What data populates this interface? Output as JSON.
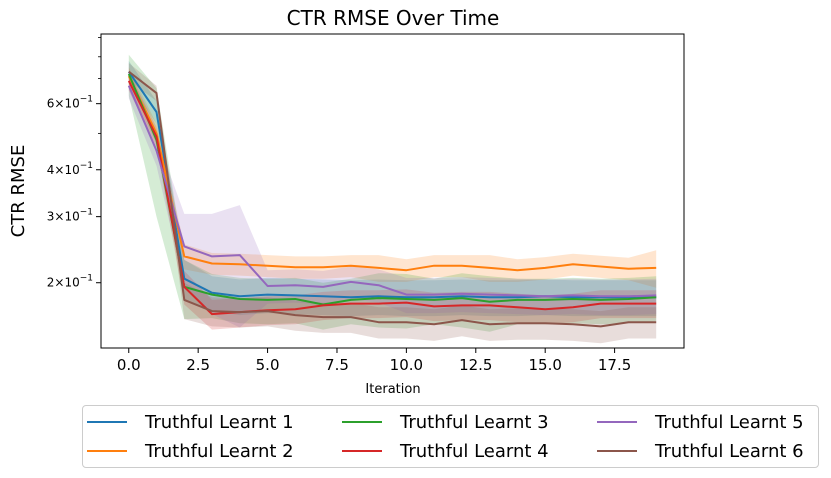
{
  "chart_data": {
    "type": "line",
    "title": "CTR RMSE Over Time",
    "xlabel": "Iteration",
    "ylabel": "CTR RMSE",
    "y_scale": "log",
    "xlim": [
      -1,
      20
    ],
    "ylim": [
      0.134,
      0.92
    ],
    "x_ticks": [
      0.0,
      2.5,
      5.0,
      7.5,
      10.0,
      12.5,
      15.0,
      17.5
    ],
    "x_tick_labels": [
      "0.0",
      "2.5",
      "5.0",
      "7.5",
      "10.0",
      "12.5",
      "15.0",
      "17.5"
    ],
    "y_ticks": [
      0.2,
      0.3,
      0.4,
      0.6
    ],
    "y_tick_labels": [
      {
        "mant": "2",
        "exp": "−1"
      },
      {
        "mant": "3",
        "exp": "−1"
      },
      {
        "mant": "4",
        "exp": "−1"
      },
      {
        "mant": "6",
        "exp": "−1"
      }
    ],
    "grid": false,
    "legend_position": "below",
    "legend_columns": 3,
    "x": [
      0,
      1,
      2,
      3,
      4,
      5,
      6,
      7,
      8,
      9,
      10,
      11,
      12,
      13,
      14,
      15,
      16,
      17,
      18,
      19
    ],
    "series": [
      {
        "name": "Truthful Learnt 1",
        "color": "#1f77b4",
        "values": [
          0.73,
          0.57,
          0.205,
          0.188,
          0.184,
          0.186,
          0.185,
          0.184,
          0.183,
          0.184,
          0.183,
          0.183,
          0.184,
          0.183,
          0.183,
          0.184,
          0.183,
          0.183,
          0.183,
          0.183
        ],
        "band": [
          0.05,
          0.04,
          0.025,
          0.02,
          0.02,
          0.02,
          0.02,
          0.02,
          0.02,
          0.02,
          0.02,
          0.02,
          0.02,
          0.02,
          0.02,
          0.02,
          0.02,
          0.02,
          0.02,
          0.02
        ]
      },
      {
        "name": "Truthful Learnt 2",
        "color": "#ff7f0e",
        "values": [
          0.71,
          0.5,
          0.235,
          0.225,
          0.224,
          0.222,
          0.22,
          0.22,
          0.222,
          0.219,
          0.216,
          0.222,
          0.222,
          0.219,
          0.216,
          0.219,
          0.224,
          0.221,
          0.218,
          0.219
        ],
        "band": [
          0.04,
          0.03,
          0.018,
          0.015,
          0.015,
          0.015,
          0.015,
          0.015,
          0.015,
          0.018,
          0.015,
          0.015,
          0.015,
          0.018,
          0.015,
          0.015,
          0.015,
          0.015,
          0.015,
          0.025
        ]
      },
      {
        "name": "Truthful Learnt 3",
        "color": "#2ca02c",
        "values": [
          0.72,
          0.48,
          0.195,
          0.186,
          0.181,
          0.18,
          0.181,
          0.175,
          0.18,
          0.182,
          0.181,
          0.18,
          0.182,
          0.178,
          0.18,
          0.18,
          0.181,
          0.18,
          0.181,
          0.183
        ],
        "band": [
          0.09,
          0.18,
          0.035,
          0.025,
          0.025,
          0.025,
          0.025,
          0.025,
          0.025,
          0.03,
          0.03,
          0.025,
          0.03,
          0.03,
          0.025,
          0.025,
          0.025,
          0.025,
          0.025,
          0.025
        ]
      },
      {
        "name": "Truthful Learnt 4",
        "color": "#d62728",
        "values": [
          0.69,
          0.49,
          0.195,
          0.165,
          0.167,
          0.169,
          0.17,
          0.174,
          0.176,
          0.176,
          0.177,
          0.173,
          0.174,
          0.174,
          0.172,
          0.17,
          0.172,
          0.176,
          0.176,
          0.176
        ],
        "band": [
          0.04,
          0.03,
          0.02,
          0.015,
          0.015,
          0.015,
          0.015,
          0.015,
          0.015,
          0.015,
          0.015,
          0.015,
          0.015,
          0.015,
          0.015,
          0.015,
          0.015,
          0.015,
          0.015,
          0.015
        ]
      },
      {
        "name": "Truthful Learnt 5",
        "color": "#9467bd",
        "values": [
          0.67,
          0.45,
          0.25,
          0.235,
          0.237,
          0.196,
          0.197,
          0.195,
          0.201,
          0.197,
          0.186,
          0.186,
          0.187,
          0.186,
          0.185,
          0.184,
          0.185,
          0.184,
          0.184,
          0.185
        ],
        "band": [
          0.05,
          0.04,
          0.055,
          0.07,
          0.085,
          0.02,
          0.02,
          0.02,
          0.02,
          0.02,
          0.02,
          0.02,
          0.02,
          0.02,
          0.02,
          0.02,
          0.02,
          0.02,
          0.02,
          0.02
        ]
      },
      {
        "name": "Truthful Learnt 6",
        "color": "#8c564b",
        "values": [
          0.73,
          0.64,
          0.18,
          0.168,
          0.167,
          0.168,
          0.164,
          0.162,
          0.162,
          0.157,
          0.157,
          0.155,
          0.159,
          0.155,
          0.156,
          0.156,
          0.155,
          0.153,
          0.157,
          0.157
        ],
        "band": [
          0.04,
          0.03,
          0.02,
          0.015,
          0.015,
          0.015,
          0.015,
          0.015,
          0.015,
          0.015,
          0.015,
          0.015,
          0.015,
          0.015,
          0.015,
          0.015,
          0.015,
          0.015,
          0.015,
          0.015
        ]
      }
    ]
  }
}
